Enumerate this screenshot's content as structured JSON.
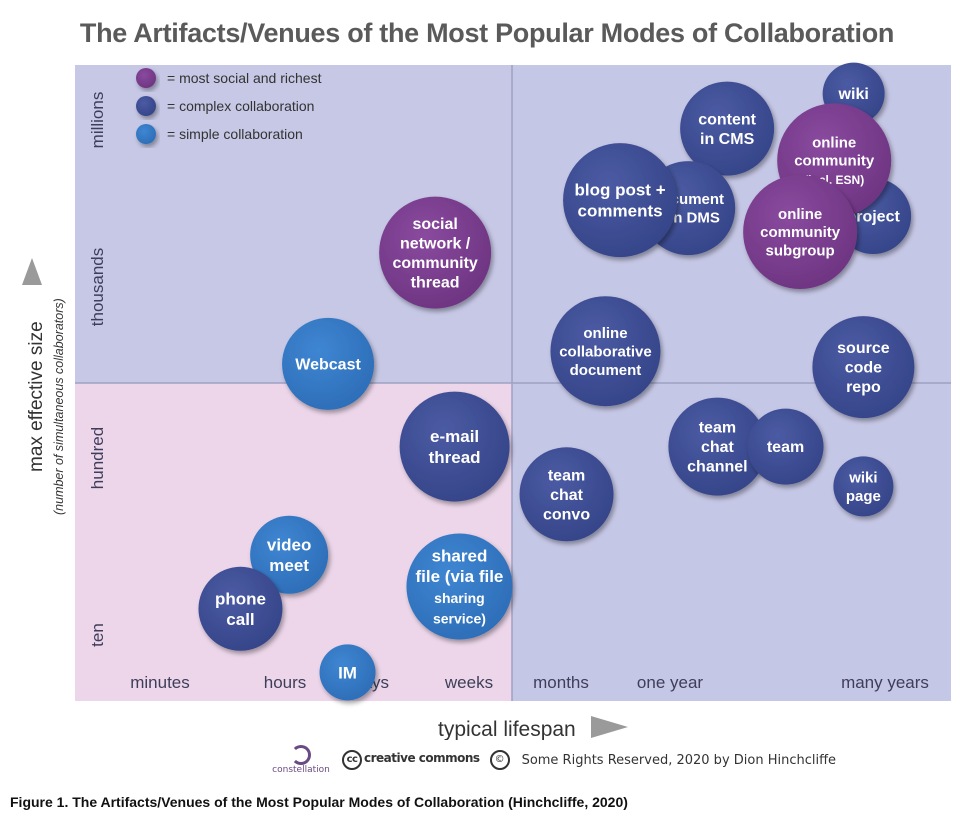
{
  "title": "The Artifacts/Venues of the Most Popular Modes of Collaboration",
  "caption": "Figure 1. The Artifacts/Venues of the Most Popular Modes of Collaboration (Hinchcliffe, 2020)",
  "footer": {
    "logo_text": "constellation",
    "cc_text": "creative commons",
    "rights_text": "Some Rights Reserved, 2020 by Dion Hinchcliffe"
  },
  "colors": {
    "most_social": "#7a3f8e",
    "complex": "#3f4f95",
    "simple": "#3578c4",
    "panel_blue": "#c6c8e6",
    "panel_pink": "#edd6ea"
  },
  "chart_data": {
    "type": "scatter",
    "xlabel": "typical lifespan",
    "ylabel": "max effective size",
    "ylabel_sub": "(number of simultaneous collaborators)",
    "x_ticks": [
      "minutes",
      "hours",
      "days",
      "weeks",
      "months",
      "one year",
      "many years"
    ],
    "y_ticks": [
      "ten",
      "hundred",
      "thousands",
      "millions"
    ],
    "legend": [
      {
        "key": "most_social",
        "label": "= most social and richest"
      },
      {
        "key": "complex",
        "label": "= complex collaboration"
      },
      {
        "key": "simple",
        "label": "= simple collaboration"
      }
    ],
    "bubbles": [
      {
        "label": [
          "wiki"
        ],
        "category": "complex",
        "x": 8.0,
        "y": 3.82
      },
      {
        "label": [
          "content",
          "in CMS"
        ],
        "category": "complex",
        "x": 6.7,
        "y": 3.6
      },
      {
        "label": [
          "project"
        ],
        "category": "complex",
        "x": 8.2,
        "y": 3.05
      },
      {
        "label": [
          "document",
          "s in DMS"
        ],
        "category": "complex",
        "x": 6.3,
        "y": 3.1
      },
      {
        "label": [
          "blog post +",
          "comments"
        ],
        "category": "complex",
        "x": 5.6,
        "y": 3.15
      },
      {
        "label": [
          "online",
          "community",
          "(incl. ESN)"
        ],
        "category": "most_social",
        "x": 7.8,
        "y": 3.4
      },
      {
        "label": [
          "online",
          "community",
          "subgroup"
        ],
        "category": "most_social",
        "x": 7.45,
        "y": 2.95
      },
      {
        "label": [
          "social",
          "network /",
          "community",
          "thread"
        ],
        "category": "most_social",
        "x": 3.7,
        "y": 2.82
      },
      {
        "label": [
          "online",
          "collaborative",
          "document"
        ],
        "category": "complex",
        "x": 5.45,
        "y": 2.2
      },
      {
        "label": [
          "source",
          "code",
          "repo"
        ],
        "category": "complex",
        "x": 8.1,
        "y": 2.1
      },
      {
        "label": [
          "Webcast"
        ],
        "category": "simple",
        "x": 2.6,
        "y": 2.12
      },
      {
        "label": [
          "e-mail",
          "thread"
        ],
        "category": "complex",
        "x": 3.9,
        "y": 1.6
      },
      {
        "label": [
          "team",
          "chat",
          "channel"
        ],
        "category": "complex",
        "x": 6.6,
        "y": 1.6
      },
      {
        "label": [
          "team"
        ],
        "category": "complex",
        "x": 7.3,
        "y": 1.6
      },
      {
        "label": [
          "wiki",
          "page"
        ],
        "category": "complex",
        "x": 8.1,
        "y": 1.35
      },
      {
        "label": [
          "team",
          "chat",
          "convo"
        ],
        "category": "complex",
        "x": 5.05,
        "y": 1.3
      },
      {
        "label": [
          "video",
          "meet"
        ],
        "category": "simple",
        "x": 2.2,
        "y": 0.92
      },
      {
        "label": [
          "shared",
          "file (via file",
          "sharing",
          "service)"
        ],
        "category": "simple",
        "x": 3.95,
        "y": 0.72
      },
      {
        "label": [
          "phone",
          "call"
        ],
        "category": "complex",
        "x": 1.7,
        "y": 0.58
      },
      {
        "label": [
          "IM"
        ],
        "category": "simple",
        "x": 2.8,
        "y": 0.18
      }
    ]
  }
}
